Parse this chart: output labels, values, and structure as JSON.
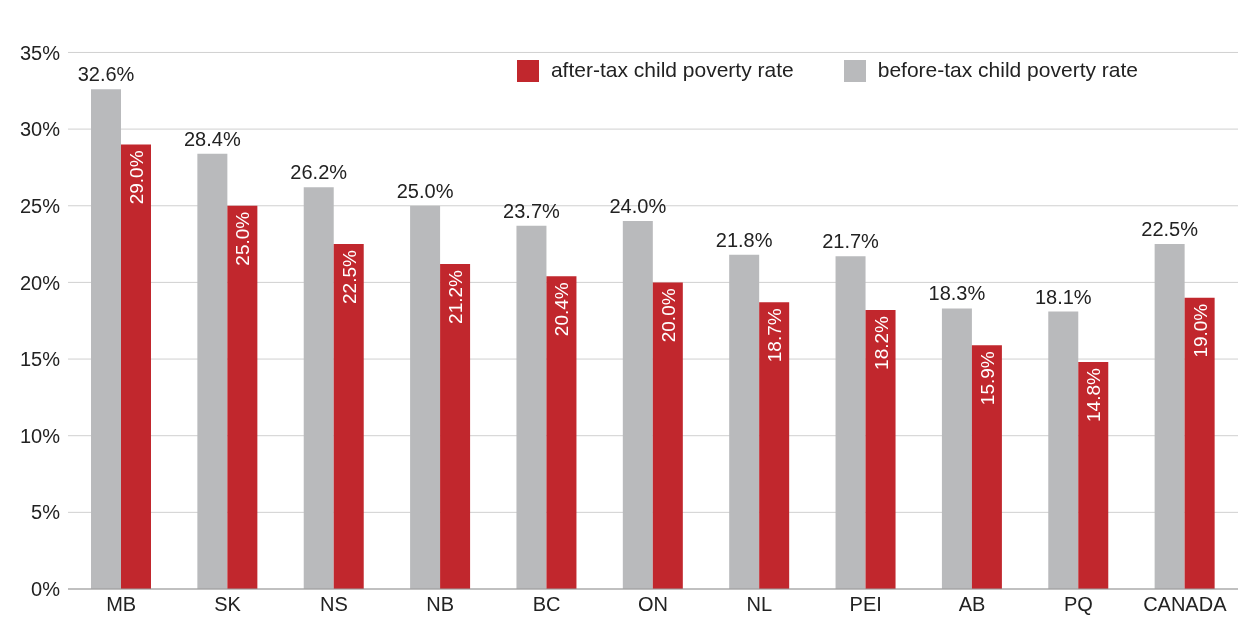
{
  "chart_data": {
    "type": "bar",
    "categories": [
      "MB",
      "SK",
      "NS",
      "NB",
      "BC",
      "ON",
      "NL",
      "PEI",
      "AB",
      "PQ",
      "CANADA"
    ],
    "series": [
      {
        "name": "before-tax child poverty rate",
        "color": "#b9babc",
        "values": [
          32.6,
          28.4,
          26.2,
          25.0,
          23.7,
          24.0,
          21.8,
          21.7,
          18.3,
          18.1,
          22.5
        ],
        "value_labels": [
          "32.6%",
          "28.4%",
          "26.2%",
          "25.0%",
          "23.7%",
          "24.0%",
          "21.8%",
          "21.7%",
          "18.3%",
          "18.1%",
          "22.5%"
        ]
      },
      {
        "name": "after-tax child poverty rate",
        "color": "#c1272d",
        "values": [
          29.0,
          25.0,
          22.5,
          21.2,
          20.4,
          20.0,
          18.7,
          18.2,
          15.9,
          14.8,
          19.0
        ],
        "value_labels": [
          "29.0%",
          "25.0%",
          "22.5%",
          "21.2%",
          "20.4%",
          "20.0%",
          "18.7%",
          "18.2%",
          "15.9%",
          "14.8%",
          "19.0%"
        ]
      }
    ],
    "ylim": [
      0,
      35
    ],
    "yticks": [
      {
        "value": 0,
        "label": "0%"
      },
      {
        "value": 5,
        "label": "5%"
      },
      {
        "value": 10,
        "label": "10%"
      },
      {
        "value": 15,
        "label": "15%"
      },
      {
        "value": 20,
        "label": "20%"
      },
      {
        "value": 25,
        "label": "25%"
      },
      {
        "value": 30,
        "label": "30%"
      },
      {
        "value": 35,
        "label": "35%"
      }
    ],
    "grid": "y",
    "legend": "top right"
  }
}
